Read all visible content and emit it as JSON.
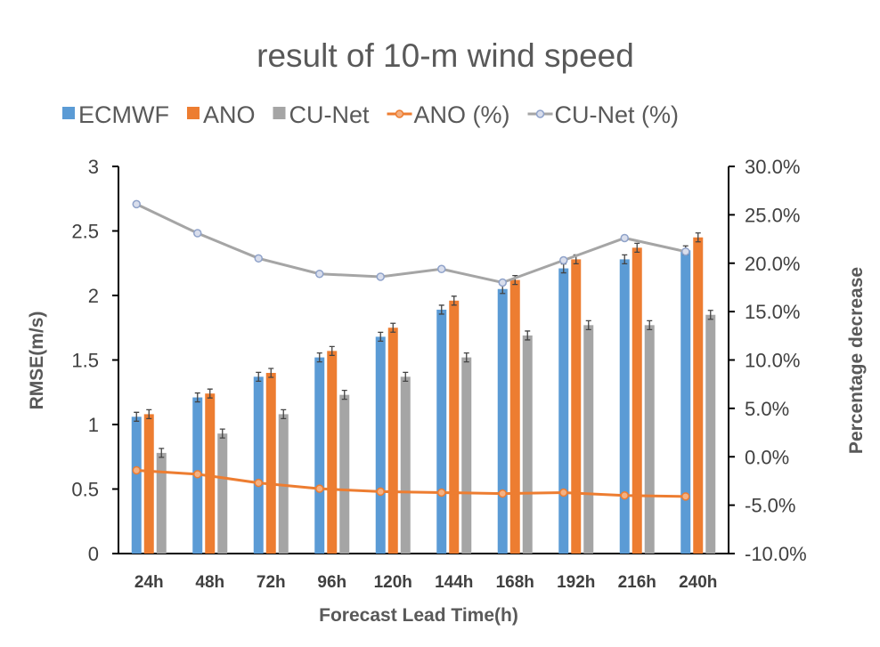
{
  "chart_data": {
    "type": "bar",
    "title": "result of 10-m wind speed",
    "xlabel": "Forecast Lead Time(h)",
    "ylabel": "RMSE(m/s)",
    "y2label": "Percentage decrease",
    "categories": [
      "24h",
      "48h",
      "72h",
      "96h",
      "120h",
      "144h",
      "168h",
      "192h",
      "216h",
      "240h"
    ],
    "ylim": [
      0,
      3
    ],
    "yticks": [
      "0",
      "0.5",
      "1",
      "1.5",
      "2",
      "2.5",
      "3"
    ],
    "y2lim": [
      -10,
      30
    ],
    "y2ticks": [
      "-10.0%",
      "-5.0%",
      "0.0%",
      "5.0%",
      "10.0%",
      "15.0%",
      "20.0%",
      "25.0%",
      "30.0%"
    ],
    "grid": false,
    "legend_position": "top",
    "series": [
      {
        "name": "ECMWF",
        "kind": "bar",
        "axis": "left",
        "color": "#5B9BD5",
        "values": [
          1.06,
          1.21,
          1.37,
          1.52,
          1.68,
          1.89,
          2.05,
          2.21,
          2.28,
          2.35
        ]
      },
      {
        "name": "ANO",
        "kind": "bar",
        "axis": "left",
        "color": "#ED7D31",
        "values": [
          1.08,
          1.24,
          1.4,
          1.57,
          1.75,
          1.96,
          2.12,
          2.28,
          2.37,
          2.45
        ]
      },
      {
        "name": "CU-Net",
        "kind": "bar",
        "axis": "left",
        "color": "#A5A5A5",
        "values": [
          0.78,
          0.93,
          1.08,
          1.23,
          1.37,
          1.52,
          1.69,
          1.77,
          1.77,
          1.85
        ]
      },
      {
        "name": "ANO (%)",
        "kind": "line",
        "axis": "right",
        "color": "#ED7D31",
        "values": [
          -1.4,
          -1.8,
          -2.7,
          -3.3,
          -3.6,
          -3.7,
          -3.8,
          -3.7,
          -4.0,
          -4.1
        ]
      },
      {
        "name": "CU-Net (%)",
        "kind": "line",
        "axis": "right",
        "color": "#A5A5A5",
        "marker_color": "#8FA2C9",
        "values": [
          26.1,
          23.1,
          20.5,
          18.9,
          18.6,
          19.4,
          18.0,
          20.3,
          22.6,
          21.2
        ]
      }
    ]
  }
}
